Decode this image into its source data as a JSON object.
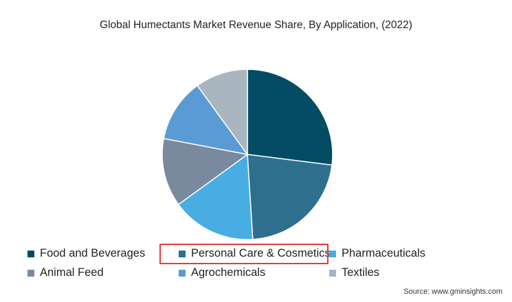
{
  "chart_data": {
    "type": "pie",
    "title": "Global Humectants Market Revenue Share, By Application, (2022)",
    "series": [
      {
        "name": "Food and Beverages",
        "value": 27,
        "color": "#034c63"
      },
      {
        "name": "Personal Care & Cosmetics",
        "value": 22,
        "color": "#2e6f8e"
      },
      {
        "name": "Pharmaceuticals",
        "value": 16,
        "color": "#47ade2"
      },
      {
        "name": "Animal Feed",
        "value": 13,
        "color": "#7a8a9e"
      },
      {
        "name": "Agrochemicals",
        "value": 12,
        "color": "#5b9bd5"
      },
      {
        "name": "Textiles",
        "value": 10,
        "color": "#a9b5bf"
      }
    ],
    "legend_position": "bottom",
    "highlighted_legend_item": "Personal Care & Cosmetics"
  },
  "source": "Source: www.gminsights.com"
}
